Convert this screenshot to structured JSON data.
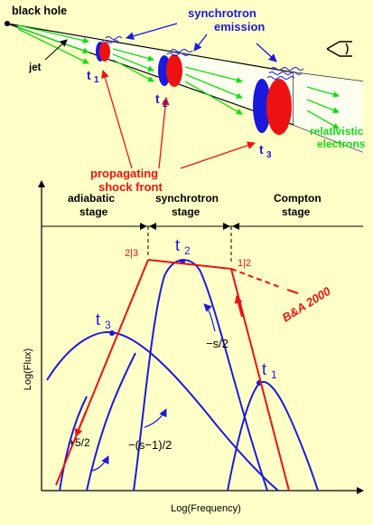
{
  "top": {
    "black_hole": "black hole",
    "jet": "jet",
    "synchrotron_line1": "synchrotron",
    "synchrotron_line2": "emission",
    "relativistic_line1": "relativistic",
    "relativistic_line2": "electrons",
    "shock_line1": "propagating",
    "shock_line2": "shock front",
    "t1": "t",
    "t1_sub": "1",
    "t2": "t",
    "t2_sub": "2",
    "t3": "t",
    "t3_sub": "3"
  },
  "chart": {
    "stage_adiabatic_1": "adiabatic",
    "stage_adiabatic_2": "stage",
    "stage_synchrotron_1": "synchrotron",
    "stage_synchrotron_2": "stage",
    "stage_compton_1": "Compton",
    "stage_compton_2": "stage",
    "label_23": "2|3",
    "label_12": "1|2",
    "t1": "t",
    "t1_sub": "1",
    "t2": "t",
    "t2_sub": "2",
    "t3": "t",
    "t3_sub": "3",
    "ba2000": "B&A 2000",
    "slope_s2": "−s/2",
    "slope_p52": "+5/2",
    "slope_s12": "−(s−1)/2",
    "ylabel": "Log(Flux)",
    "xlabel": "Log(Frequency)"
  },
  "colors": {
    "background": "#ffffc8",
    "blue": "#1a1adc",
    "red": "#ee1111",
    "green": "#11dd11",
    "black": "#000000"
  }
}
